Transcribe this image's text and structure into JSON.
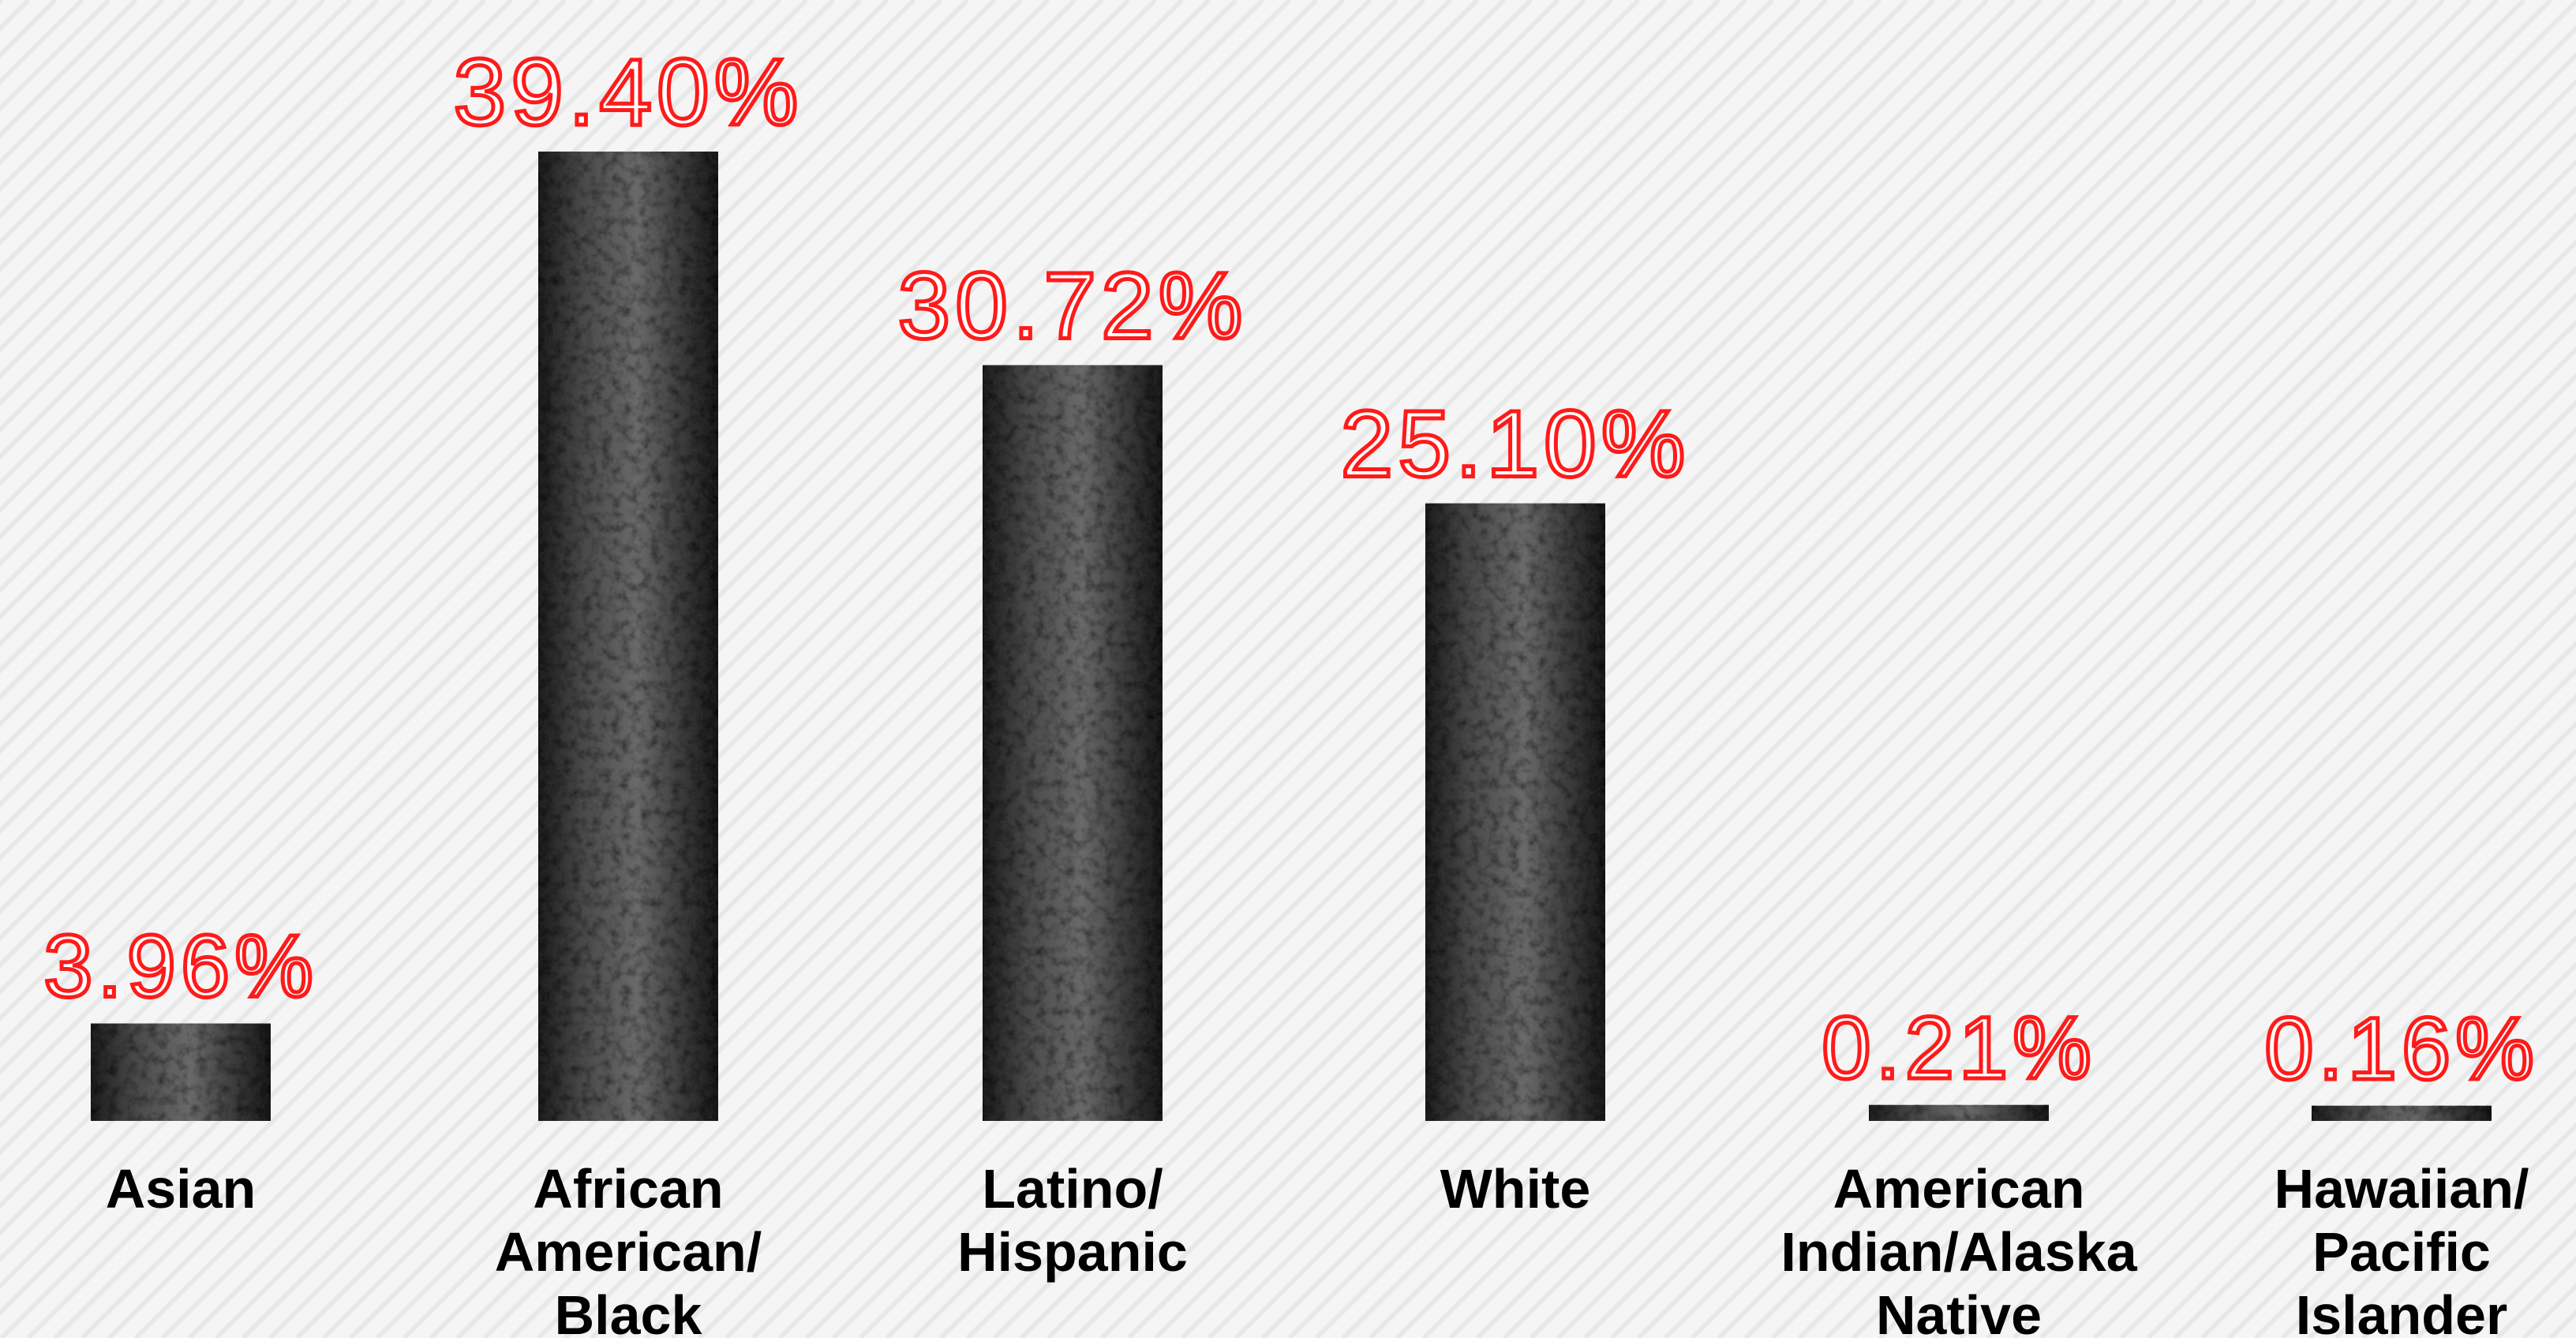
{
  "chart_data": {
    "type": "bar",
    "categories": [
      "Asian",
      "African American/ Black",
      "Latino/ Hispanic",
      "White",
      "American Indian/Alaska Native",
      "Hawaiian/ Pacific Islander"
    ],
    "category_lines": [
      [
        "Asian"
      ],
      [
        "African",
        "American/",
        "Black"
      ],
      [
        "Latino/",
        "Hispanic"
      ],
      [
        "White"
      ],
      [
        "American",
        "Indian/Alaska",
        "Native"
      ],
      [
        "Hawaiian/",
        "Pacific",
        "Islander"
      ]
    ],
    "values": [
      3.96,
      39.4,
      30.72,
      25.1,
      0.21,
      0.16
    ],
    "data_labels": [
      "3.96%",
      "39.40%",
      "30.72%",
      "25.10%",
      "0.21%",
      "0.16%"
    ],
    "title": "",
    "xlabel": "",
    "ylabel": "",
    "ylim": [
      0,
      40
    ],
    "grid": false,
    "legend": "none",
    "colors": {
      "bar": "#3a3a3a",
      "bar_dark": "#1a1a1a",
      "bar_light": "#7a7a7a",
      "label_stroke": "#ff1a1a",
      "label_fill": "#ffffff",
      "category_text": "#000000",
      "background": "#f5f5f5"
    }
  }
}
